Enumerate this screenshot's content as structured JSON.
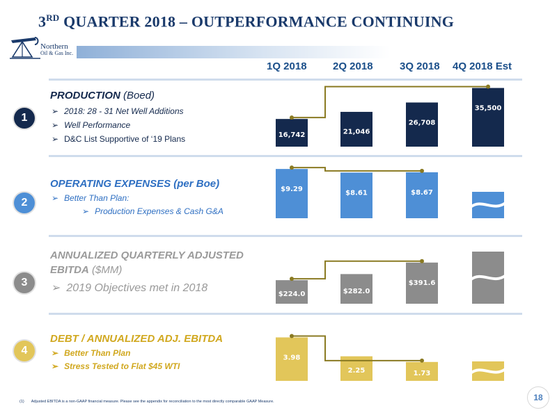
{
  "slide": {
    "title_prefix": "3",
    "title_sup": "RD",
    "title_rest": " QUARTER 2018 – OUTPERFORMANCE CONTINUING",
    "logo_line1": "Northern",
    "logo_line2": "Oil & Gas Inc.",
    "columns": [
      "1Q 2018",
      "2Q 2018",
      "3Q 2018",
      "4Q 2018 Est"
    ],
    "footnote_mark": "(1)",
    "footnote": "Adjusted EBITDA is a non-GAAP financial measure.  Please see the appendix for reconciliation to the most directly comparable GAAP Measure.",
    "page_number": "18"
  },
  "sections": [
    {
      "number": "1",
      "title": "PRODUCTION",
      "title_suffix": " (Boed)",
      "bullets": [
        "2018: 28 - 31 Net Well Additions",
        "Well Performance",
        "D&C List Supportive of ‘19 Plans"
      ],
      "sub_bullets": []
    },
    {
      "number": "2",
      "title": "OPERATING EXPENSES (per Boe)",
      "title_suffix": "",
      "bullets": [
        "Better Than Plan:"
      ],
      "sub_bullets": [
        "Production Expenses & Cash G&A"
      ]
    },
    {
      "number": "3",
      "title": "ANNUALIZED QUARTERLY ADJUSTED",
      "title_line2": "EBITDA",
      "title_suffix": " ($MM)",
      "bullets": [
        "2019 Objectives met in 2018"
      ],
      "sub_bullets": []
    },
    {
      "number": "4",
      "title": "DEBT / ANNUALIZED ADJ. EBITDA",
      "title_suffix": "",
      "bullets": [
        "Better Than Plan",
        "Stress Tested to Flat $45 WTI"
      ],
      "sub_bullets": []
    }
  ],
  "colors": {
    "title": "#1a3a6b",
    "production": "#14294d",
    "opex": "#4e8fd6",
    "ebitda": "#8c8c8c",
    "leverage": "#e2c65a",
    "connector": "#8a7a22",
    "opex_text": "#2e6fc2",
    "ebitda_text": "#9a9a9a",
    "leverage_text": "#d1a81f"
  },
  "chart_data": [
    {
      "type": "bar",
      "categories": [
        "1Q 2018",
        "2Q 2018",
        "3Q 2018",
        "4Q 2018 Est"
      ],
      "values": [
        16742,
        21046,
        26708,
        35500
      ],
      "labels": [
        "16,742",
        "21,046",
        "26,708",
        "35,500"
      ],
      "ylim": [
        0,
        37000
      ]
    },
    {
      "type": "bar",
      "categories": [
        "1Q 2018",
        "2Q 2018",
        "3Q 2018",
        "4Q 2018 Est"
      ],
      "values": [
        9.29,
        8.61,
        8.67,
        null
      ],
      "labels": [
        "$9.29",
        "$8.61",
        "$8.67",
        ""
      ],
      "ylim": [
        0,
        9.7
      ]
    },
    {
      "type": "bar",
      "categories": [
        "1Q 2018",
        "2Q 2018",
        "3Q 2018",
        "4Q 2018 Est"
      ],
      "values": [
        224.0,
        282.0,
        391.6,
        null
      ],
      "labels": [
        "$224.0",
        "$282.0",
        "$391.6",
        ""
      ],
      "ylim": [
        0,
        410
      ]
    },
    {
      "type": "bar",
      "categories": [
        "1Q 2018",
        "2Q 2018",
        "3Q 2018",
        "4Q 2018 Est"
      ],
      "values": [
        3.98,
        2.25,
        1.73,
        null
      ],
      "labels": [
        "3.98",
        "2.25",
        "1.73",
        ""
      ],
      "ylim": [
        0,
        4.2
      ]
    }
  ]
}
